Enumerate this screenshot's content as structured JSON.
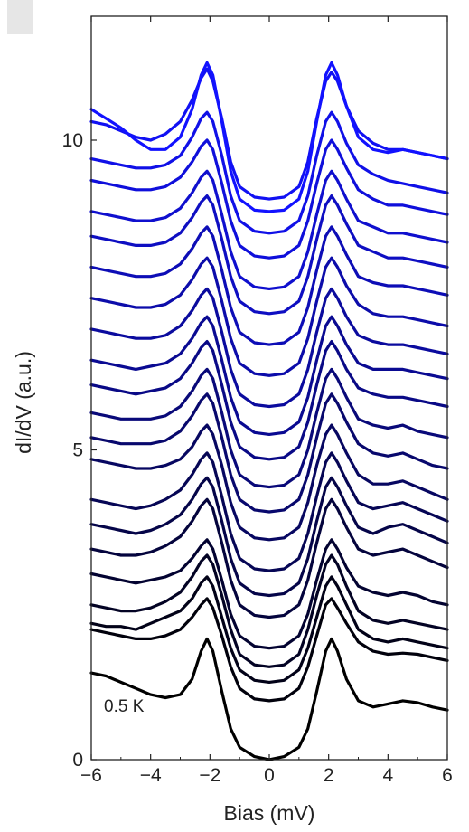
{
  "chart_data": {
    "type": "line",
    "xlabel": "Bias (mV)",
    "ylabel": "dI/dV (a.u.)",
    "xlim": [
      -6,
      6
    ],
    "ylim": [
      0,
      12.0
    ],
    "x_ticks": [
      "−6",
      "−4",
      "−2",
      "0",
      "2",
      "4",
      "6"
    ],
    "x_tick_values": [
      -6,
      -4,
      -2,
      0,
      2,
      4,
      6
    ],
    "y_ticks": [
      "0",
      "5",
      "10"
    ],
    "y_tick_values": [
      0,
      5,
      10
    ],
    "annotation": "0.5 K",
    "color_low": "#000000",
    "color_high": "#1212ff",
    "x": [
      -6,
      -5.5,
      -5,
      -4.5,
      -4,
      -3.5,
      -3,
      -2.6,
      -2.3,
      -2.1,
      -1.9,
      -1.6,
      -1.3,
      -1.0,
      -0.5,
      0,
      0.5,
      1.0,
      1.3,
      1.6,
      1.9,
      2.1,
      2.3,
      2.6,
      3,
      3.5,
      4,
      4.5,
      5,
      5.5,
      6
    ],
    "series": [
      {
        "values": [
          1.4,
          1.35,
          1.25,
          1.15,
          1.05,
          1.0,
          1.05,
          1.3,
          1.75,
          1.95,
          1.75,
          1.1,
          0.5,
          0.2,
          0.05,
          0.0,
          0.05,
          0.2,
          0.5,
          1.1,
          1.75,
          1.95,
          1.75,
          1.3,
          0.95,
          0.85,
          0.9,
          0.95,
          0.92,
          0.85,
          0.8
        ]
      },
      {
        "values": [
          2.1,
          2.05,
          2.0,
          1.95,
          1.95,
          2.0,
          2.1,
          2.3,
          2.5,
          2.6,
          2.45,
          2.0,
          1.5,
          1.15,
          0.98,
          0.95,
          0.98,
          1.15,
          1.5,
          2.0,
          2.5,
          2.6,
          2.45,
          2.2,
          1.9,
          1.75,
          1.7,
          1.72,
          1.7,
          1.65,
          1.6
        ]
      },
      {
        "values": [
          2.2,
          2.15,
          2.15,
          2.1,
          2.2,
          2.3,
          2.4,
          2.6,
          2.85,
          2.95,
          2.8,
          2.3,
          1.8,
          1.45,
          1.28,
          1.25,
          1.28,
          1.45,
          1.8,
          2.3,
          2.8,
          2.95,
          2.8,
          2.5,
          2.1,
          1.95,
          1.9,
          1.95,
          1.9,
          1.85,
          1.8
        ]
      },
      {
        "values": [
          2.5,
          2.45,
          2.4,
          2.4,
          2.45,
          2.55,
          2.7,
          2.95,
          3.2,
          3.3,
          3.15,
          2.65,
          2.1,
          1.7,
          1.53,
          1.5,
          1.53,
          1.7,
          2.1,
          2.65,
          3.15,
          3.3,
          3.15,
          2.8,
          2.4,
          2.25,
          2.2,
          2.25,
          2.2,
          2.15,
          2.1
        ]
      },
      {
        "values": [
          3.0,
          2.95,
          2.9,
          2.85,
          2.9,
          2.95,
          3.05,
          3.25,
          3.45,
          3.55,
          3.4,
          2.9,
          2.35,
          2.0,
          1.83,
          1.8,
          1.83,
          2.0,
          2.35,
          2.9,
          3.4,
          3.55,
          3.4,
          3.1,
          2.8,
          2.7,
          2.65,
          2.7,
          2.65,
          2.55,
          2.5
        ]
      },
      {
        "values": [
          3.4,
          3.35,
          3.3,
          3.3,
          3.35,
          3.45,
          3.6,
          3.85,
          4.1,
          4.2,
          4.05,
          3.5,
          2.9,
          2.5,
          2.33,
          2.3,
          2.33,
          2.5,
          2.9,
          3.5,
          4.05,
          4.2,
          4.05,
          3.75,
          3.4,
          3.3,
          3.35,
          3.4,
          3.3,
          3.2,
          3.1
        ]
      },
      {
        "values": [
          3.8,
          3.75,
          3.7,
          3.65,
          3.7,
          3.8,
          3.95,
          4.2,
          4.45,
          4.55,
          4.4,
          3.85,
          3.25,
          2.85,
          2.68,
          2.65,
          2.68,
          2.85,
          3.25,
          3.85,
          4.4,
          4.55,
          4.4,
          4.1,
          3.75,
          3.65,
          3.75,
          3.8,
          3.7,
          3.6,
          3.5
        ]
      },
      {
        "values": [
          4.2,
          4.15,
          4.1,
          4.05,
          4.1,
          4.2,
          4.35,
          4.6,
          4.85,
          4.95,
          4.8,
          4.25,
          3.65,
          3.25,
          3.08,
          3.05,
          3.08,
          3.25,
          3.65,
          4.25,
          4.8,
          4.95,
          4.8,
          4.5,
          4.15,
          4.05,
          4.1,
          4.15,
          4.05,
          3.95,
          3.85
        ]
      },
      {
        "values": [
          4.85,
          4.8,
          4.75,
          4.7,
          4.7,
          4.75,
          4.85,
          5.05,
          5.3,
          5.4,
          5.25,
          4.75,
          4.15,
          3.75,
          3.58,
          3.55,
          3.58,
          3.75,
          4.15,
          4.75,
          5.25,
          5.4,
          5.25,
          4.95,
          4.6,
          4.45,
          4.45,
          4.5,
          4.4,
          4.3,
          4.2
        ]
      },
      {
        "values": [
          5.2,
          5.15,
          5.1,
          5.1,
          5.1,
          5.15,
          5.3,
          5.55,
          5.8,
          5.9,
          5.75,
          5.2,
          4.6,
          4.2,
          4.03,
          4.0,
          4.03,
          4.2,
          4.6,
          5.2,
          5.75,
          5.9,
          5.75,
          5.45,
          5.1,
          4.95,
          4.9,
          4.95,
          4.85,
          4.75,
          4.7
        ]
      },
      {
        "values": [
          5.6,
          5.55,
          5.5,
          5.5,
          5.5,
          5.55,
          5.7,
          5.95,
          6.2,
          6.3,
          6.15,
          5.6,
          5.0,
          4.6,
          4.43,
          4.4,
          4.43,
          4.6,
          5.0,
          5.6,
          6.15,
          6.3,
          6.15,
          5.85,
          5.5,
          5.4,
          5.35,
          5.4,
          5.3,
          5.25,
          5.2
        ]
      },
      {
        "values": [
          6.05,
          6.0,
          5.95,
          5.9,
          5.95,
          6.0,
          6.15,
          6.4,
          6.65,
          6.75,
          6.6,
          6.05,
          5.45,
          5.05,
          4.88,
          4.85,
          4.88,
          5.05,
          5.45,
          6.05,
          6.6,
          6.75,
          6.6,
          6.3,
          6.0,
          5.9,
          5.85,
          5.85,
          5.8,
          5.75,
          5.7
        ]
      },
      {
        "values": [
          6.45,
          6.4,
          6.35,
          6.3,
          6.35,
          6.4,
          6.55,
          6.8,
          7.05,
          7.15,
          7.0,
          6.45,
          5.85,
          5.45,
          5.28,
          5.25,
          5.28,
          5.45,
          5.85,
          6.45,
          7.0,
          7.15,
          7.0,
          6.7,
          6.4,
          6.3,
          6.3,
          6.3,
          6.25,
          6.2,
          6.15
        ]
      },
      {
        "values": [
          6.95,
          6.9,
          6.85,
          6.8,
          6.8,
          6.85,
          7.0,
          7.25,
          7.5,
          7.6,
          7.45,
          6.9,
          6.3,
          5.9,
          5.73,
          5.7,
          5.73,
          5.9,
          6.3,
          6.9,
          7.45,
          7.6,
          7.45,
          7.15,
          6.85,
          6.75,
          6.7,
          6.7,
          6.65,
          6.6,
          6.55
        ]
      },
      {
        "values": [
          7.45,
          7.4,
          7.35,
          7.3,
          7.3,
          7.35,
          7.5,
          7.75,
          8.0,
          8.1,
          7.95,
          7.4,
          6.8,
          6.4,
          6.23,
          6.2,
          6.23,
          6.4,
          6.8,
          7.4,
          7.95,
          8.1,
          7.95,
          7.65,
          7.35,
          7.2,
          7.15,
          7.15,
          7.1,
          7.05,
          7.0
        ]
      },
      {
        "values": [
          7.95,
          7.9,
          7.85,
          7.8,
          7.8,
          7.85,
          8.0,
          8.25,
          8.5,
          8.6,
          8.45,
          7.9,
          7.3,
          6.9,
          6.73,
          6.7,
          6.73,
          6.9,
          7.3,
          7.9,
          8.45,
          8.6,
          8.45,
          8.15,
          7.8,
          7.7,
          7.65,
          7.65,
          7.6,
          7.55,
          7.5
        ]
      },
      {
        "values": [
          8.45,
          8.4,
          8.35,
          8.3,
          8.3,
          8.35,
          8.5,
          8.75,
          9.0,
          9.1,
          8.95,
          8.4,
          7.8,
          7.4,
          7.23,
          7.2,
          7.23,
          7.4,
          7.8,
          8.4,
          8.95,
          9.1,
          8.95,
          8.65,
          8.3,
          8.2,
          8.1,
          8.1,
          8.05,
          8.0,
          7.95
        ]
      },
      {
        "values": [
          8.85,
          8.8,
          8.75,
          8.7,
          8.7,
          8.75,
          8.9,
          9.15,
          9.4,
          9.5,
          9.35,
          8.8,
          8.2,
          7.8,
          7.63,
          7.6,
          7.63,
          7.8,
          8.2,
          8.8,
          9.35,
          9.5,
          9.35,
          9.05,
          8.7,
          8.6,
          8.5,
          8.5,
          8.45,
          8.4,
          8.35
        ]
      },
      {
        "values": [
          9.35,
          9.3,
          9.25,
          9.2,
          9.2,
          9.25,
          9.4,
          9.65,
          9.9,
          10.0,
          9.85,
          9.3,
          8.7,
          8.3,
          8.13,
          8.1,
          8.13,
          8.3,
          8.7,
          9.3,
          9.85,
          10.0,
          9.85,
          9.55,
          9.2,
          9.05,
          8.95,
          8.95,
          8.9,
          8.85,
          8.8
        ]
      },
      {
        "values": [
          9.7,
          9.65,
          9.6,
          9.55,
          9.55,
          9.6,
          9.75,
          10.05,
          10.35,
          10.45,
          10.3,
          9.75,
          9.1,
          8.7,
          8.53,
          8.5,
          8.53,
          8.7,
          9.1,
          9.75,
          10.3,
          10.45,
          10.3,
          9.95,
          9.6,
          9.45,
          9.35,
          9.3,
          9.25,
          9.2,
          9.15
        ]
      },
      {
        "values": [
          10.3,
          10.25,
          10.15,
          10.05,
          10.0,
          10.1,
          10.3,
          10.65,
          11.0,
          11.15,
          10.95,
          10.35,
          9.65,
          9.25,
          9.08,
          9.05,
          9.08,
          9.25,
          9.65,
          10.35,
          10.95,
          11.1,
          10.95,
          10.55,
          10.15,
          9.95,
          9.85,
          9.85,
          9.8,
          9.75,
          9.7
        ]
      },
      {
        "values": [
          10.5,
          10.35,
          10.2,
          10.0,
          9.85,
          9.85,
          10.05,
          10.5,
          11.05,
          11.25,
          11.05,
          10.3,
          9.5,
          9.05,
          8.87,
          8.85,
          8.87,
          9.05,
          9.5,
          10.3,
          11.05,
          11.25,
          11.05,
          10.55,
          10.05,
          9.85,
          9.8,
          9.85,
          9.8,
          9.75,
          9.7
        ]
      }
    ]
  }
}
